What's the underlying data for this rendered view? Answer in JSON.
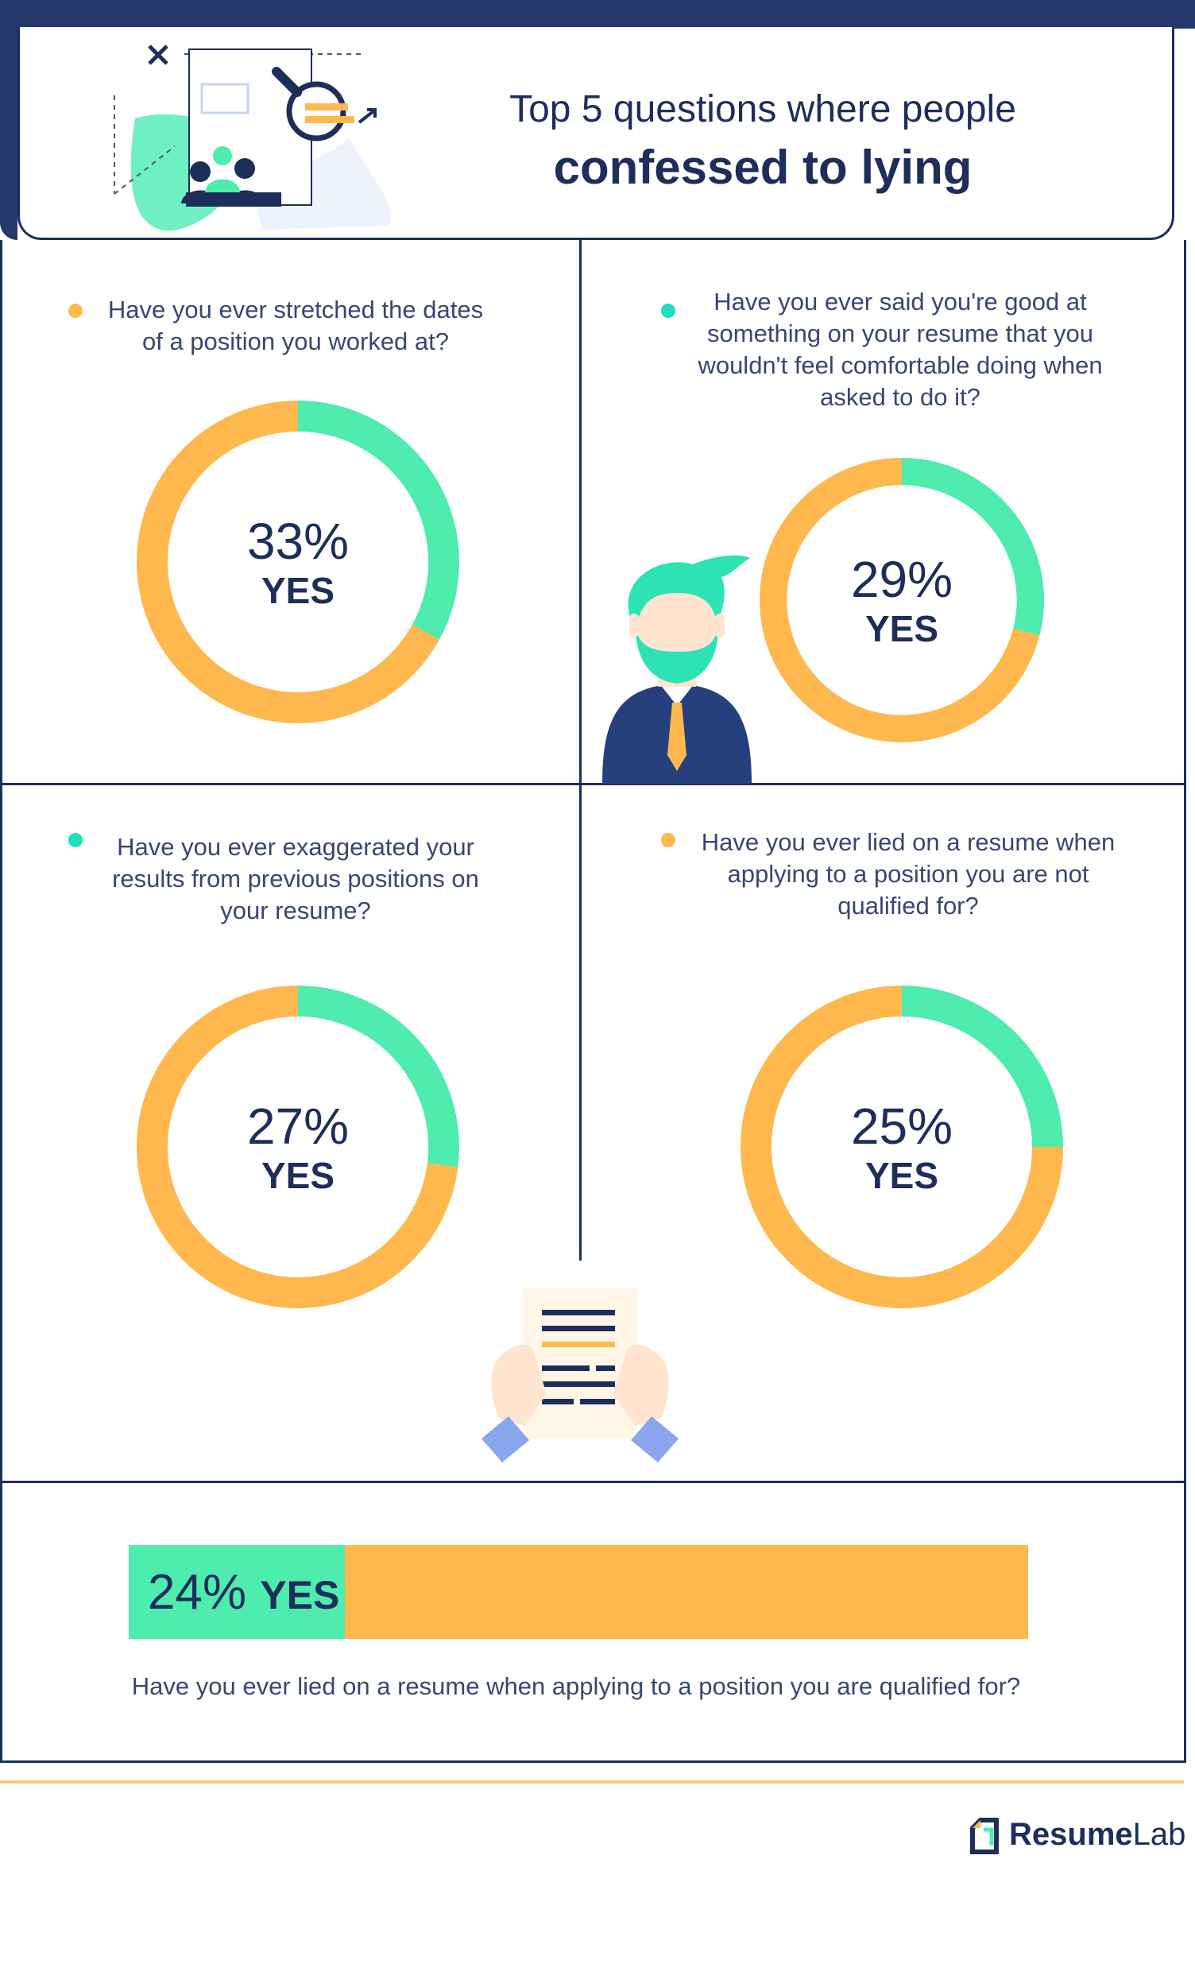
{
  "header": {
    "title_line1": "Top 5 questions where people",
    "title_line2": "confessed to lying"
  },
  "chart_data": [
    {
      "type": "pie",
      "question": "Have you ever stretched the dates of a position you worked at?",
      "percent_label": "33%",
      "yes_label": "YES",
      "yes_percent": 33,
      "dot_color": "#ffb84d"
    },
    {
      "type": "pie",
      "question": "Have you ever said you're good at something on your resume that you wouldn't feel comfortable doing when asked to do it?",
      "percent_label": "29%",
      "yes_label": "YES",
      "yes_percent": 29,
      "dot_color": "#1de0b8"
    },
    {
      "type": "pie",
      "question": "Have you ever exaggerated your results from previous positions on your resume?",
      "percent_label": "27%",
      "yes_label": "YES",
      "yes_percent": 27,
      "dot_color": "#1de0b8"
    },
    {
      "type": "pie",
      "question": "Have you ever lied on a resume when applying to a position you are not qualified for?",
      "percent_label": "25%",
      "yes_label": "YES",
      "yes_percent": 25,
      "dot_color": "#ffb84d"
    },
    {
      "type": "bar",
      "question": "Have you ever lied on a resume when applying to a position you are qualified for?",
      "percent_label": "24%",
      "yes_label": "YES",
      "yes_percent": 24
    }
  ],
  "colors": {
    "yes": "#4eecae",
    "no": "#ffb84d",
    "navy": "#1e2e5a"
  },
  "logo": {
    "part1": "Resume",
    "part2": "Lab"
  }
}
